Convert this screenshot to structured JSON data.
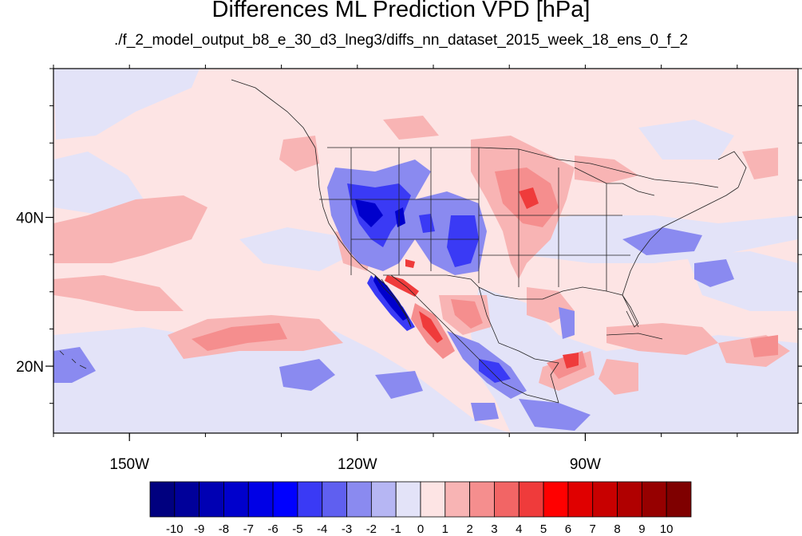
{
  "title": "Differences ML Prediction VPD [hPa]",
  "subtitle": "./f_2_model_output_b8_e_30_d3_lneg3/diffs_nn_dataset_2015_week_18_ens_0_f_2",
  "map": {
    "lon_range": [
      -160,
      -62
    ],
    "lat_range": [
      11,
      60
    ],
    "lon_ticks": [
      {
        "lon": -150,
        "label": "150W"
      },
      {
        "lon": -120,
        "label": "120W"
      },
      {
        "lon": -90,
        "label": "90W"
      }
    ],
    "lat_ticks": [
      {
        "lat": 40,
        "label": "40N"
      },
      {
        "lat": 20,
        "label": "20N"
      }
    ],
    "background_color": "#fde4e4"
  },
  "colorbar": {
    "labels": [
      "-10",
      "-9",
      "-8",
      "-7",
      "-6",
      "-5",
      "-4",
      "-3",
      "-2",
      "-1",
      "0",
      "1",
      "2",
      "3",
      "4",
      "5",
      "6",
      "7",
      "8",
      "9",
      "10"
    ],
    "colors": [
      "#00007f",
      "#00009a",
      "#0000b3",
      "#0000cc",
      "#0000e6",
      "#0000ff",
      "#3a3af5",
      "#5f5ff0",
      "#8a8af0",
      "#b6b6f3",
      "#e3e3f8",
      "#fde4e4",
      "#f8b4b4",
      "#f58e8e",
      "#f26565",
      "#ef3b3b",
      "#ff0000",
      "#e00000",
      "#c80000",
      "#b00000",
      "#960000",
      "#7f0000"
    ]
  }
}
